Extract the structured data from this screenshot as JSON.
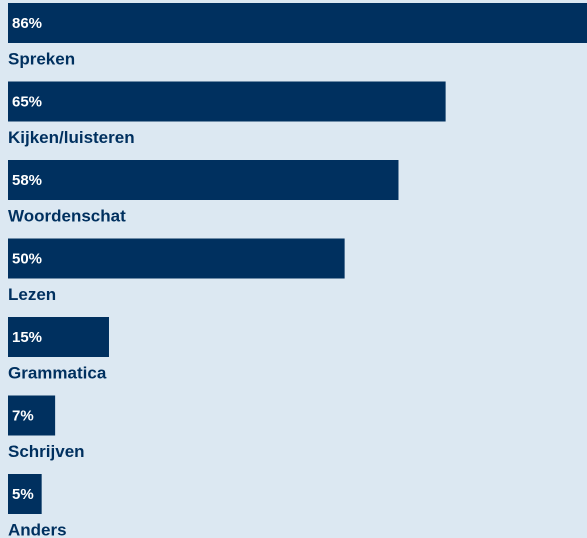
{
  "chart_data": {
    "type": "bar",
    "orientation": "horizontal",
    "categories": [
      "Spreken",
      "Kijken/luisteren",
      "Woordenschat",
      "Lezen",
      "Grammatica",
      "Schrijven",
      "Anders"
    ],
    "values": [
      86,
      65,
      58,
      50,
      15,
      7,
      5
    ],
    "value_labels": [
      "86%",
      "65%",
      "58%",
      "50%",
      "15%",
      "7%",
      "5%"
    ],
    "color": "#00305f"
  }
}
